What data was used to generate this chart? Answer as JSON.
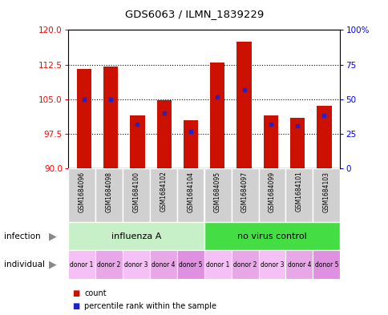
{
  "title": "GDS6063 / ILMN_1839229",
  "samples": [
    "GSM1684096",
    "GSM1684098",
    "GSM1684100",
    "GSM1684102",
    "GSM1684104",
    "GSM1684095",
    "GSM1684097",
    "GSM1684099",
    "GSM1684101",
    "GSM1684103"
  ],
  "count_values": [
    111.5,
    112.0,
    101.5,
    104.8,
    100.5,
    113.0,
    117.5,
    101.5,
    101.0,
    103.5
  ],
  "percentile_values": [
    105.0,
    105.0,
    99.5,
    102.0,
    98.0,
    105.5,
    107.0,
    99.5,
    99.2,
    101.5
  ],
  "ylim_left": [
    90,
    120
  ],
  "yticks_left": [
    90,
    97.5,
    105,
    112.5,
    120
  ],
  "yticks_right": [
    0,
    25,
    50,
    75,
    100
  ],
  "individual_labels": [
    "donor 1",
    "donor 2",
    "donor 3",
    "donor 4",
    "donor 5",
    "donor 1",
    "donor 2",
    "donor 3",
    "donor 4",
    "donor 5"
  ],
  "bar_color": "#cc1100",
  "pct_color": "#2222cc",
  "base_value": 90,
  "bar_width": 0.55,
  "infection_light": "#c8f0c8",
  "infection_dark": "#44dd44",
  "individual_colors": [
    "#f5c0f5",
    "#e8a8e8",
    "#f5c0f5",
    "#e8a8e8",
    "#e090e0",
    "#f5c0f5",
    "#e8a8e8",
    "#f5c0f5",
    "#e8a8e8",
    "#e090e0"
  ],
  "sample_bg": "#d0d0d0"
}
